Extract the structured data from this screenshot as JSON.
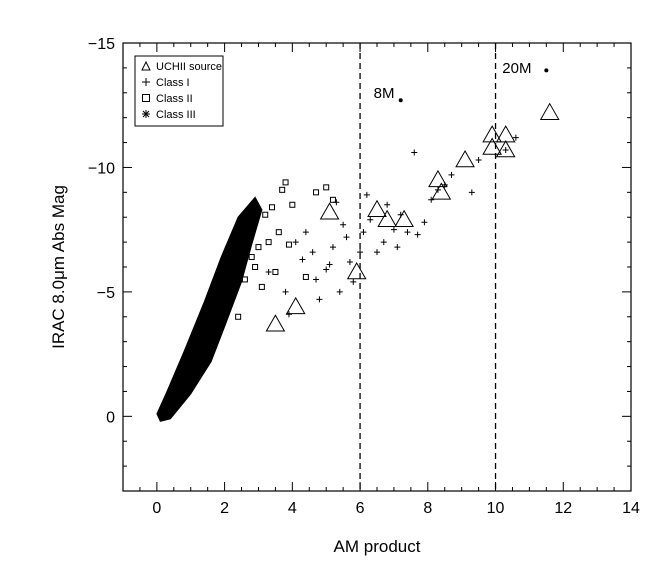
{
  "chart_data": {
    "type": "scatter",
    "xlabel": "AM product",
    "ylabel": "IRAC 8.0μm Abs Mag",
    "xlim": [
      -1,
      14
    ],
    "ylim": [
      3,
      -15
    ],
    "x_ticks": [
      0,
      2,
      4,
      6,
      8,
      10,
      12,
      14
    ],
    "y_ticks": [
      0,
      -5,
      -10,
      -15
    ],
    "x_tick_labels": [
      "0",
      "2",
      "4",
      "6",
      "8",
      "10",
      "12",
      "14"
    ],
    "y_tick_labels": [
      "0",
      "−5",
      "−10",
      "−15"
    ],
    "legend_position": "top-left",
    "legend": [
      {
        "marker": "triangle",
        "label": "UCHII source"
      },
      {
        "marker": "plus",
        "label": "Class I"
      },
      {
        "marker": "square",
        "label": "Class II"
      },
      {
        "marker": "asterisk",
        "label": "Class III"
      }
    ],
    "vertical_lines": [
      {
        "x": 6,
        "style": "dashed"
      },
      {
        "x": 10,
        "style": "dashed"
      }
    ],
    "annotations": [
      {
        "text": "8M",
        "x": 6.4,
        "y": -12.8,
        "dot": [
          7.2,
          -12.7
        ]
      },
      {
        "text": "20M",
        "x": 10.2,
        "y": -13.8,
        "dot": [
          11.5,
          -13.9
        ]
      }
    ],
    "series": [
      {
        "name": "UCHII source",
        "marker": "triangle",
        "x": [
          3.5,
          4.1,
          5.1,
          5.9,
          6.5,
          6.8,
          7.3,
          8.3,
          8.4,
          9.1,
          9.9,
          9.9,
          10.3,
          10.3,
          11.6
        ],
        "y": [
          -3.7,
          -4.4,
          -8.2,
          -5.8,
          -8.3,
          -7.9,
          -7.9,
          -9.5,
          -9.0,
          -10.3,
          -11.3,
          -10.8,
          -10.7,
          -11.3,
          -12.2
        ]
      },
      {
        "name": "Class I",
        "marker": "plus",
        "x": [
          4.1,
          4.4,
          4.6,
          4.7,
          5.0,
          5.2,
          5.3,
          5.5,
          5.7,
          5.8,
          6.1,
          6.2,
          6.5,
          6.7,
          7.0,
          7.2,
          7.4,
          7.6,
          7.9,
          8.1,
          8.5,
          8.7,
          9.3,
          9.5,
          10.3,
          10.6,
          3.3,
          3.8,
          3.9,
          4.3,
          4.8,
          5.1,
          5.4,
          5.6,
          6.0,
          6.3,
          6.8,
          7.1,
          7.7,
          8.3
        ],
        "y": [
          -7.0,
          -7.4,
          -6.6,
          -5.5,
          -5.9,
          -6.8,
          -8.6,
          -7.7,
          -6.2,
          -5.4,
          -7.4,
          -8.9,
          -6.6,
          -7.0,
          -7.5,
          -8.1,
          -7.4,
          -10.6,
          -7.8,
          -8.7,
          -9.3,
          -9.7,
          -9.0,
          -10.3,
          -10.7,
          -11.2,
          -5.8,
          -5.0,
          -4.1,
          -6.3,
          -4.7,
          -6.1,
          -5.0,
          -7.2,
          -6.6,
          -7.9,
          -8.5,
          -6.8,
          -7.3,
          -9.1
        ]
      },
      {
        "name": "Class II",
        "marker": "square",
        "x": [
          2.4,
          2.6,
          2.8,
          2.9,
          3.0,
          3.2,
          3.3,
          3.4,
          3.6,
          3.7,
          3.8,
          4.0,
          4.4,
          4.7,
          5.0,
          5.2,
          2.9,
          3.1,
          3.5,
          3.9
        ],
        "y": [
          -4.0,
          -5.5,
          -6.4,
          -7.8,
          -6.8,
          -8.1,
          -7.0,
          -8.4,
          -7.4,
          -9.1,
          -9.4,
          -8.5,
          -5.6,
          -9.0,
          -9.2,
          -8.7,
          -6.0,
          -5.2,
          -5.8,
          -6.9
        ]
      }
    ]
  },
  "legend_labels": {
    "l1": "UCHII source",
    "l2": "Class I",
    "l3": "Class II",
    "l4": "Class III"
  }
}
